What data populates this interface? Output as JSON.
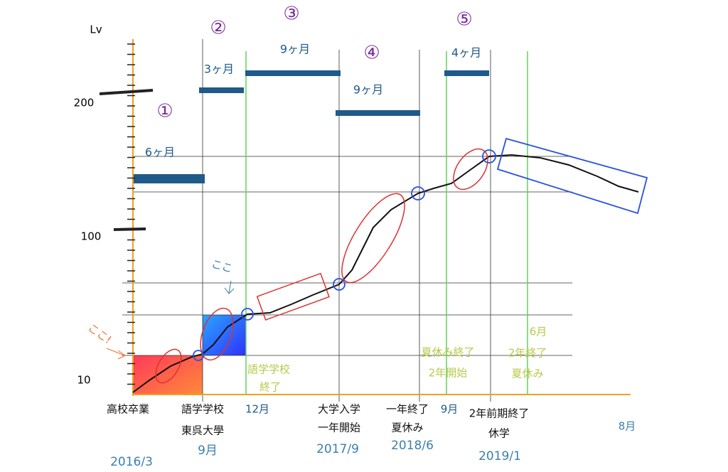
{
  "y_axis": {
    "title": "Lv",
    "labels": [
      "200",
      "100",
      "10"
    ]
  },
  "phases": [
    {
      "number": "①",
      "duration": "6ヶ月"
    },
    {
      "number": "②",
      "duration": "3ヶ月"
    },
    {
      "number": "③",
      "duration": "9ヶ月"
    },
    {
      "number": "④",
      "duration": "9ヶ月"
    },
    {
      "number": "⑤",
      "duration": "4ヶ月"
    }
  ],
  "x_labels": [
    [
      "高校卒業"
    ],
    [
      "語学学校",
      "東呉大學"
    ],
    [
      "12月"
    ],
    [
      "大学入学",
      "一年開始"
    ],
    [
      "一年終了",
      "夏休み"
    ],
    [
      "9月"
    ],
    [
      "2年前期終了",
      "休学"
    ],
    [
      "8月"
    ]
  ],
  "green_notes": [
    [
      "語学学校",
      "終了"
    ],
    [
      "夏休み終了",
      "2年開始"
    ],
    [
      "6月"
    ],
    [
      "2年終了",
      "夏休み"
    ]
  ],
  "dates": [
    "2016/3",
    "9月",
    "2017/9",
    "2018/6",
    "2019/1"
  ],
  "annotations": {
    "here_blue": "ここ",
    "here_orange": "ここ!"
  }
}
